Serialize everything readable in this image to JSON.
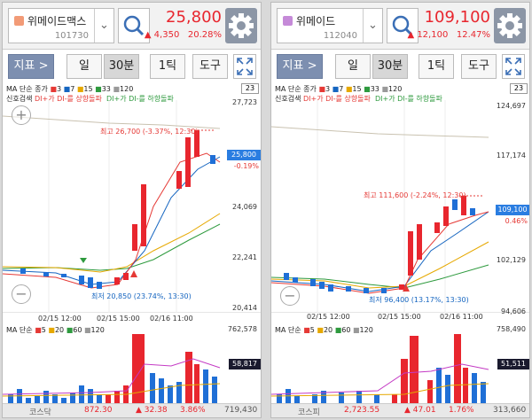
{
  "panels": [
    {
      "stock": {
        "name": "위메이드맥스",
        "code": "101730",
        "price": "25,800",
        "change": "▲ 4,350",
        "change_pct": "20.28%",
        "icon_color": "#f29b77"
      },
      "toolbar": {
        "indicator": "지표 >",
        "day": "일",
        "min30": "30분",
        "tick": "1틱",
        "tools": "도구"
      },
      "legend1": {
        "title": "MA 단순 종가",
        "ma3": "3",
        "ma7": "7",
        "ma15": "15",
        "ma33": "33",
        "ma120": "120",
        "badge": "23"
      },
      "legend2": {
        "title": "신호검색",
        "up": "DI+가 DI-를 상향돌파",
        "down": "DI+가 DI-를 하향돌파"
      },
      "yaxis": [
        "27,723",
        "24,069",
        "22,241",
        "20,414"
      ],
      "current": {
        "price": "25,800",
        "pct": "-0.19%"
      },
      "high_label": "최고 26,700 (-3.37%, 12:30)",
      "low_label": "최저 20,850 (23.74%, 13:30)",
      "xaxis": [
        "02/15 12:00",
        "02/15 15:00",
        "02/16 11:00"
      ],
      "vol_legend": {
        "title": "MA 단순",
        "v5": "5",
        "v20": "20",
        "v60": "60",
        "v120": "120"
      },
      "vol_axis": {
        "max": "762,578",
        "current": "58,817",
        "min": "0"
      },
      "index": {
        "name": "코스닥",
        "value": "872.30",
        "change": "▲ 32.38",
        "pct": "3.86%",
        "volume": "719,430"
      }
    },
    {
      "stock": {
        "name": "위메이드",
        "code": "112040",
        "price": "109,100",
        "change": "▲ 12,100",
        "change_pct": "12.47%",
        "icon_color": "#c58ad8"
      },
      "toolbar": {
        "indicator": "지표 >",
        "day": "일",
        "min30": "30분",
        "tick": "1틱",
        "tools": "도구"
      },
      "legend1": {
        "title": "MA 단순 종가",
        "ma3": "3",
        "ma7": "7",
        "ma15": "15",
        "ma33": "33",
        "ma120": "120",
        "badge": "23"
      },
      "legend2": {
        "title": "신호검색",
        "up": "DI+가 DI-를 상향돌파",
        "down": "DI+가 DI-를 하향돌파"
      },
      "yaxis": [
        "124,697",
        "117,174",
        "102,129",
        "94,606"
      ],
      "current": {
        "price": "109,100",
        "pct": "0.46%"
      },
      "high_label": "최고 111,600 (-2.24%, 12:30)",
      "low_label": "최저 96,400 (13.17%, 13:30)",
      "xaxis": [
        "02/15 12:00",
        "02/15 15:00",
        "02/16 11:00"
      ],
      "vol_legend": {
        "title": "MA 단순",
        "v5": "5",
        "v20": "20",
        "v60": "60",
        "v120": "120"
      },
      "vol_axis": {
        "max": "758,490",
        "current": "51,511",
        "min": "0"
      },
      "index": {
        "name": "코스피",
        "value": "2,723.55",
        "change": "▲ 47.01",
        "pct": "1.76%",
        "volume": "313,660"
      }
    }
  ],
  "colors": {
    "up": "#e8262e",
    "down": "#1f6fd6",
    "ma3": "#e53935",
    "ma7": "#1565c0",
    "ma15": "#e6a800",
    "ma33": "#2e9a3e",
    "ma120": "#999999"
  }
}
